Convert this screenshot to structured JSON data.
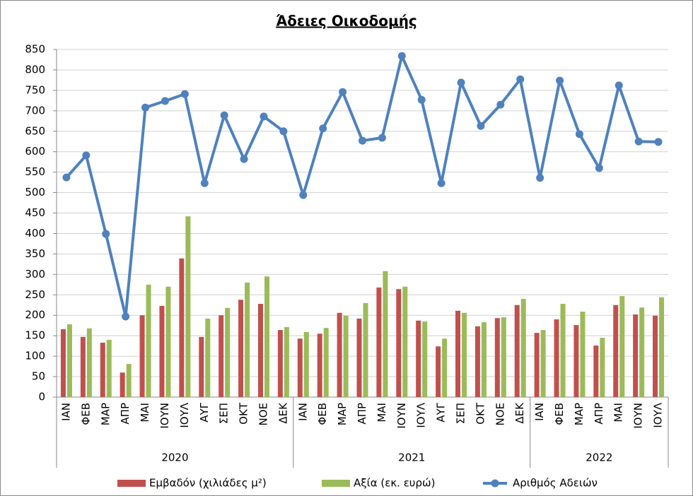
{
  "chart_data": {
    "type": "bar",
    "title": "Άδειες Οικοδομής",
    "groups": [
      {
        "name": "2020",
        "categories": [
          "ΙΑΝ",
          "ΦΕΒ",
          "ΜΑΡ",
          "ΑΠΡ",
          "ΜΑΙ",
          "ΙΟΥΝ",
          "ΙΟΥΛ",
          "ΑΥΓ",
          "ΣΕΠ",
          "ΟΚΤ",
          "ΝΟΕ",
          "ΔΕΚ"
        ]
      },
      {
        "name": "2021",
        "categories": [
          "ΙΑΝ",
          "ΦΕΒ",
          "ΜΑΡ",
          "ΑΠΡ",
          "ΜΑΙ",
          "ΙΟΥΝ",
          "ΙΟΥΛ",
          "ΑΥΓ",
          "ΣΕΠ",
          "ΟΚΤ",
          "ΝΟΕ",
          "ΔΕΚ"
        ]
      },
      {
        "name": "2022",
        "categories": [
          "ΙΑΝ",
          "ΦΕΒ",
          "ΜΑΡ",
          "ΑΠΡ",
          "ΜΑΙ",
          "ΙΟΥΝ",
          "ΙΟΥΛ"
        ]
      }
    ],
    "series": [
      {
        "name": "Εμβαδόν (χιλιάδες μ²)",
        "color": "#c0504d",
        "type": "bar",
        "values": [
          166,
          147,
          133,
          60,
          200,
          223,
          339,
          147,
          200,
          238,
          228,
          164,
          143,
          155,
          206,
          192,
          268,
          264,
          187,
          124,
          211,
          173,
          193,
          225,
          157,
          190,
          176,
          126,
          225,
          202,
          199
        ]
      },
      {
        "name": "Αξία (εκ. ευρώ)",
        "color": "#9bbb59",
        "type": "bar",
        "values": [
          178,
          168,
          140,
          81,
          275,
          270,
          442,
          192,
          218,
          280,
          295,
          171,
          159,
          169,
          199,
          230,
          308,
          270,
          185,
          143,
          206,
          183,
          195,
          240,
          164,
          228,
          209,
          145,
          247,
          219,
          244
        ]
      },
      {
        "name": "Αριθμός Αδειών",
        "color": "#4f81bd",
        "type": "line",
        "values": [
          537,
          591,
          399,
          197,
          708,
          724,
          741,
          523,
          689,
          582,
          686,
          650,
          494,
          657,
          746,
          627,
          634,
          834,
          727,
          523,
          769,
          663,
          715,
          777,
          536,
          774,
          643,
          560,
          762,
          625,
          624
        ]
      }
    ],
    "ylim": [
      0,
      850
    ],
    "yticks": [
      0,
      50,
      100,
      150,
      200,
      250,
      300,
      350,
      400,
      450,
      500,
      550,
      600,
      650,
      700,
      750,
      800,
      850
    ],
    "grid": true
  }
}
